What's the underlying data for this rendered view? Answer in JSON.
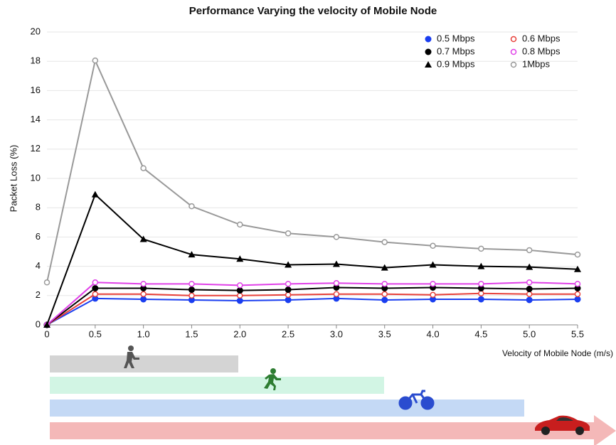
{
  "chart_data": {
    "type": "line",
    "title": "Performance Varying the velocity of Mobile Node",
    "y_label": "Packet Loss (%)",
    "x_label": "Velocity of Mobile Node (m/s)",
    "x": [
      0,
      0.5,
      1,
      1.5,
      2,
      2.5,
      3,
      3.5,
      4,
      4.5,
      5,
      5.5
    ],
    "xlim": [
      0,
      5.5
    ],
    "xticks": [
      0,
      0.5,
      {
        "value": 1,
        "label": "1.0"
      },
      1.5,
      {
        "value": 2,
        "label": "2.0"
      },
      2.5,
      {
        "value": 3,
        "label": "3.0"
      },
      3.5,
      {
        "value": 4,
        "label": "4.0"
      },
      4.5,
      {
        "value": 5,
        "label": "5.0"
      },
      5.5
    ],
    "ylim": [
      0,
      20
    ],
    "yticks": [
      0,
      2,
      4,
      6,
      8,
      10,
      12,
      14,
      16,
      18,
      20
    ],
    "grid": true,
    "legend": "top-right",
    "series": [
      {
        "name": "0.5 Mbps",
        "color": "#1a3ef0",
        "marker": "filled-circle",
        "values": [
          0,
          1.8,
          1.75,
          1.7,
          1.65,
          1.7,
          1.8,
          1.7,
          1.75,
          1.75,
          1.7,
          1.75
        ]
      },
      {
        "name": "0.6 Mbps",
        "color": "#e8403a",
        "marker": "hollow-circle",
        "values": [
          0,
          2.1,
          2.1,
          2.0,
          2.0,
          2.05,
          2.1,
          2.1,
          2.05,
          2.15,
          2.1,
          2.1
        ]
      },
      {
        "name": "0.7 Mbps",
        "color": "#000000",
        "marker": "filled-circle",
        "values": [
          0,
          2.5,
          2.5,
          2.4,
          2.35,
          2.4,
          2.55,
          2.5,
          2.55,
          2.5,
          2.45,
          2.5
        ]
      },
      {
        "name": "0.8 Mbps",
        "color": "#e040e8",
        "marker": "hollow-circle",
        "values": [
          0,
          2.9,
          2.8,
          2.8,
          2.7,
          2.8,
          2.85,
          2.8,
          2.8,
          2.8,
          2.9,
          2.8
        ]
      },
      {
        "name": "0.9 Mbps",
        "color": "#000000",
        "marker": "triangle",
        "values": [
          0,
          8.9,
          5.85,
          4.8,
          4.5,
          4.1,
          4.15,
          3.9,
          4.1,
          4.0,
          3.95,
          3.8
        ]
      },
      {
        "name": "1Mbps",
        "color": "#999999",
        "marker": "hollow-circle",
        "values": [
          2.9,
          18.05,
          10.7,
          8.1,
          6.85,
          6.25,
          6.0,
          5.65,
          5.4,
          5.2,
          5.1,
          4.8
        ]
      }
    ]
  }
}
